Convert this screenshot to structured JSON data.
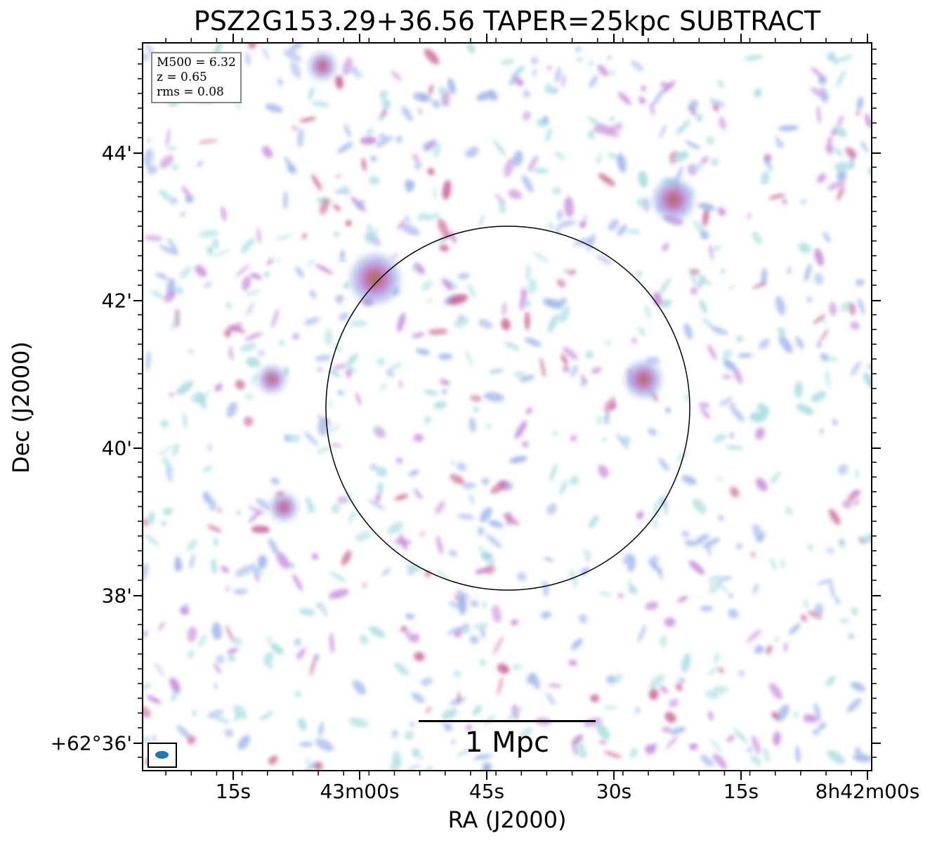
{
  "figure": {
    "title": "PSZ2G153.29+36.56 TAPER=25kpc SUBTRACT",
    "xlabel": "RA (J2000)",
    "ylabel": "Dec (J2000)",
    "info_lines": [
      "M500 = 6.32",
      "z = 0.65",
      "rms = 0.08"
    ],
    "scalebar_label": "1 Mpc",
    "x_ticks": [
      "15s",
      "43m00s",
      "45s",
      "30s",
      "15s",
      "8h42m00s"
    ],
    "y_ticks": [
      "44'",
      "42'",
      "40'",
      "38'",
      "+62°36'"
    ],
    "colors": {
      "faint": "#a9dce0",
      "low": "#9fb5ea",
      "mid": "#c48ad8",
      "high": "#c96394",
      "peak": "#9a7a4a",
      "beam": "#1f77b4",
      "info_border": "#888888"
    }
  }
}
